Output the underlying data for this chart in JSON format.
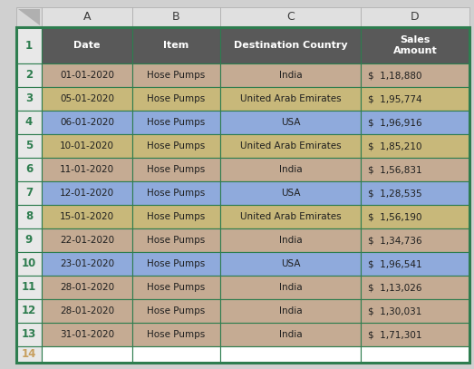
{
  "col_headers": [
    "A",
    "B",
    "C",
    "D"
  ],
  "header_row": [
    "Date",
    "Item",
    "Destination Country",
    "Sales\nAmount"
  ],
  "rows": [
    [
      "01-01-2020",
      "Hose Pumps",
      "India",
      "$  1,18,880"
    ],
    [
      "05-01-2020",
      "Hose Pumps",
      "United Arab Emirates",
      "$  1,95,774"
    ],
    [
      "06-01-2020",
      "Hose Pumps",
      "USA",
      "$  1,96,916"
    ],
    [
      "10-01-2020",
      "Hose Pumps",
      "United Arab Emirates",
      "$  1,85,210"
    ],
    [
      "11-01-2020",
      "Hose Pumps",
      "India",
      "$  1,56,831"
    ],
    [
      "12-01-2020",
      "Hose Pumps",
      "USA",
      "$  1,28,535"
    ],
    [
      "15-01-2020",
      "Hose Pumps",
      "United Arab Emirates",
      "$  1,56,190"
    ],
    [
      "22-01-2020",
      "Hose Pumps",
      "India",
      "$  1,34,736"
    ],
    [
      "23-01-2020",
      "Hose Pumps",
      "USA",
      "$  1,96,541"
    ],
    [
      "28-01-2020",
      "Hose Pumps",
      "India",
      "$  1,13,026"
    ],
    [
      "28-01-2020",
      "Hose Pumps",
      "India",
      "$  1,30,031"
    ],
    [
      "31-01-2020",
      "Hose Pumps",
      "India",
      "$  1,71,301"
    ]
  ],
  "row_colors": [
    "#c5ab93",
    "#c8b87a",
    "#8faadc",
    "#c8b87a",
    "#c5ab93",
    "#8faadc",
    "#c8b87a",
    "#c5ab93",
    "#8faadc",
    "#c5ab93",
    "#c5ab93",
    "#c5ab93"
  ],
  "header_bg": "#595959",
  "header_text_color": "#ffffff",
  "col_letter_bg": "#e0e0e0",
  "col_letter_text_color": "#3d3d3d",
  "row_num_bg": "#e8e8e8",
  "row_num_text_color": "#2e7d4f",
  "border_color": "#2e7d4f",
  "cell_text_color": "#1f1f1f",
  "fig_bg": "#d0d0d0",
  "corner_bg": "#d8d8d8",
  "row14_text_color": "#c8a060"
}
